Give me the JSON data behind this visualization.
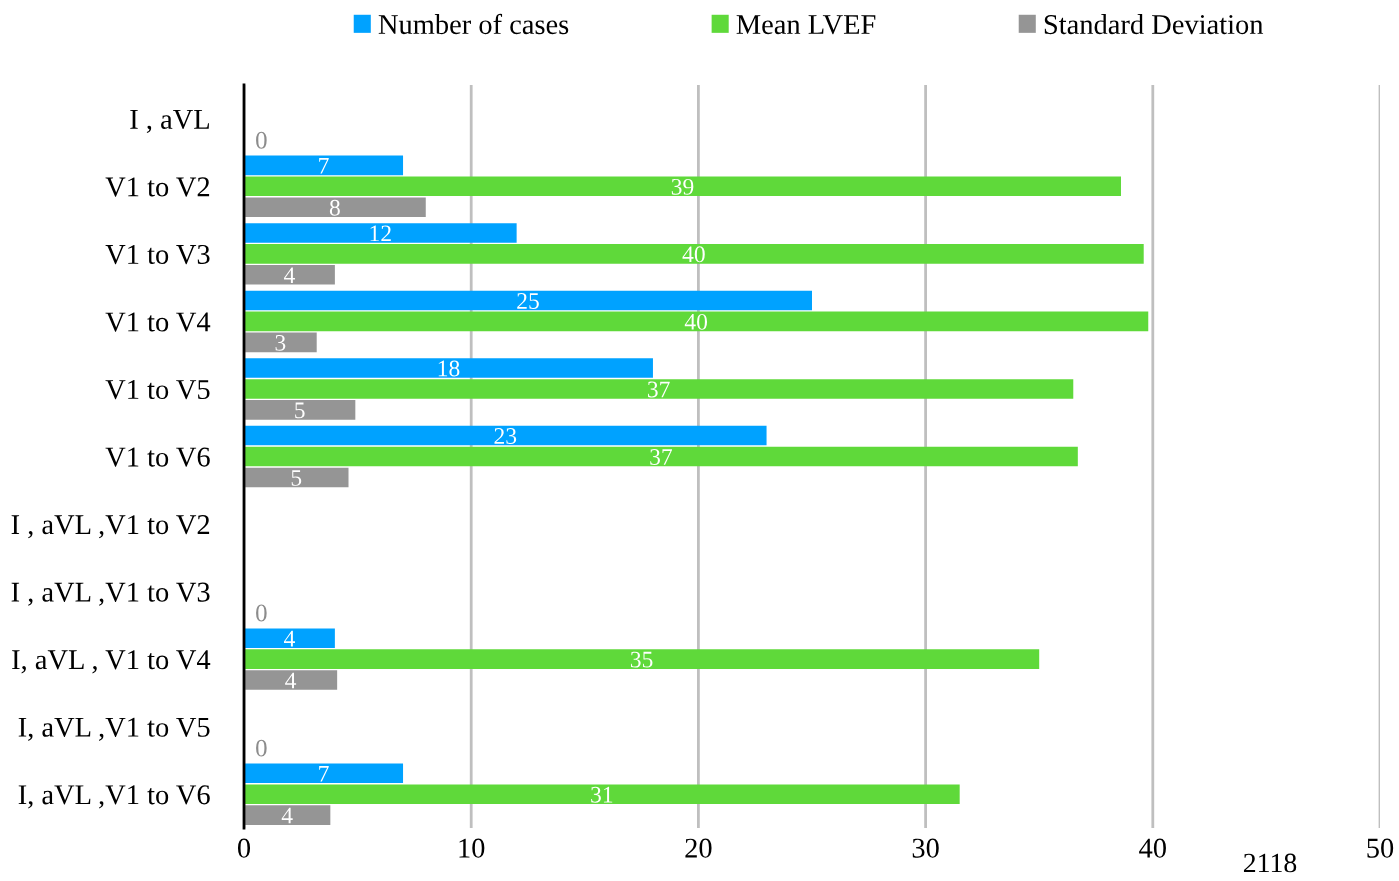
{
  "chart_data": {
    "type": "bar",
    "orientation": "horizontal",
    "categories": [
      "I , aVL",
      "V1 to V2",
      "V1 to V3",
      "V1 to V4",
      "V1 to V5",
      "V1 to V6",
      "I , aVL ,V1 to V2",
      "I , aVL ,V1 to V3",
      "I, aVL , V1 to V4",
      "I, aVL ,V1 to V5",
      "I, aVL ,V1 to V6"
    ],
    "series": [
      {
        "name": "Number of cases",
        "color": "#00a2ff",
        "values": [
          null,
          7.0,
          12.0,
          25.0,
          18.0,
          23.0,
          null,
          null,
          4.0,
          null,
          7.0
        ],
        "value_labels": [
          null,
          "7",
          "12",
          "25",
          "18",
          "23",
          null,
          null,
          "4",
          null,
          "7"
        ]
      },
      {
        "name": "Mean LVEF",
        "color": "#5fd93a",
        "values": [
          null,
          38.6,
          39.6,
          39.8,
          36.5,
          36.7,
          null,
          null,
          35.0,
          null,
          31.5
        ],
        "value_labels": [
          null,
          "39",
          "40",
          "40",
          "37",
          "37",
          null,
          null,
          "35",
          null,
          "31"
        ]
      },
      {
        "name": "Standard Deviation",
        "color": "#959595",
        "values": [
          0,
          8.0,
          4.0,
          3.2,
          4.9,
          4.6,
          null,
          0,
          4.1,
          0,
          3.8
        ],
        "value_labels": [
          "0",
          "8",
          "4",
          "3",
          "5",
          "5",
          null,
          "0",
          "4",
          "0",
          "4"
        ]
      }
    ],
    "xlim": [
      0,
      50
    ],
    "xticks": [
      0,
      10,
      20,
      30,
      40,
      50
    ],
    "grid": "x",
    "legend": "top",
    "annotations": [
      "2118"
    ]
  }
}
